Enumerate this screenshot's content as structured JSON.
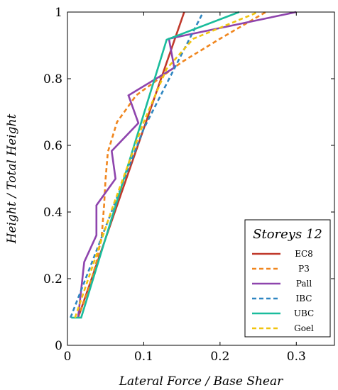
{
  "chart_data": {
    "type": "line",
    "xlabel": "Lateral Force / Base Shear",
    "ylabel": "Height / Total Height",
    "xlim": [
      0,
      0.35
    ],
    "ylim": [
      0,
      1
    ],
    "x_ticks": [
      "0",
      "0.1",
      "0.2",
      "0.3"
    ],
    "y_ticks": [
      "0",
      "0.2",
      "0.4",
      "0.6",
      "0.8",
      "1"
    ],
    "grid": false,
    "legend": {
      "position": "bottom-right",
      "title": "Storeys 12"
    },
    "series": [
      {
        "name": "EC8",
        "color": "#c0392b",
        "dash": "solid",
        "points": [
          [
            0.014,
            0.083
          ],
          [
            0.153,
            1.0
          ]
        ]
      },
      {
        "name": "P3",
        "color": "#f0861e",
        "dash": "dashed",
        "points": [
          [
            0.014,
            0.083
          ],
          [
            0.028,
            0.17
          ],
          [
            0.038,
            0.25
          ],
          [
            0.045,
            0.33
          ],
          [
            0.048,
            0.42
          ],
          [
            0.05,
            0.5
          ],
          [
            0.053,
            0.58
          ],
          [
            0.065,
            0.67
          ],
          [
            0.09,
            0.75
          ],
          [
            0.12,
            0.8
          ],
          [
            0.15,
            0.85
          ],
          [
            0.2,
            0.92
          ],
          [
            0.26,
            1.0
          ]
        ]
      },
      {
        "name": "Pall",
        "color": "#8e44ad",
        "dash": "solid",
        "points": [
          [
            0.014,
            0.083
          ],
          [
            0.022,
            0.25
          ],
          [
            0.038,
            0.33
          ],
          [
            0.038,
            0.42
          ],
          [
            0.063,
            0.5
          ],
          [
            0.058,
            0.583
          ],
          [
            0.093,
            0.667
          ],
          [
            0.08,
            0.75
          ],
          [
            0.14,
            0.833
          ],
          [
            0.133,
            0.92
          ],
          [
            0.3,
            1.0
          ]
        ]
      },
      {
        "name": "IBC",
        "color": "#2e86c1",
        "dash": "dashed",
        "points": [
          [
            0.004,
            0.083
          ],
          [
            0.1,
            0.65
          ],
          [
            0.14,
            0.83
          ],
          [
            0.178,
            1.0
          ]
        ]
      },
      {
        "name": "UBC",
        "color": "#1abc9c",
        "dash": "solid",
        "points": [
          [
            0.005,
            0.083
          ],
          [
            0.018,
            0.083
          ],
          [
            0.13,
            0.917
          ],
          [
            0.225,
            1.0
          ]
        ]
      },
      {
        "name": "Goel",
        "color": "#f1c40f",
        "dash": "dashed",
        "points": [
          [
            0.01,
            0.083
          ],
          [
            0.06,
            0.42
          ],
          [
            0.1,
            0.67
          ],
          [
            0.13,
            0.83
          ],
          [
            0.165,
            0.92
          ],
          [
            0.25,
            1.0
          ]
        ]
      }
    ]
  }
}
